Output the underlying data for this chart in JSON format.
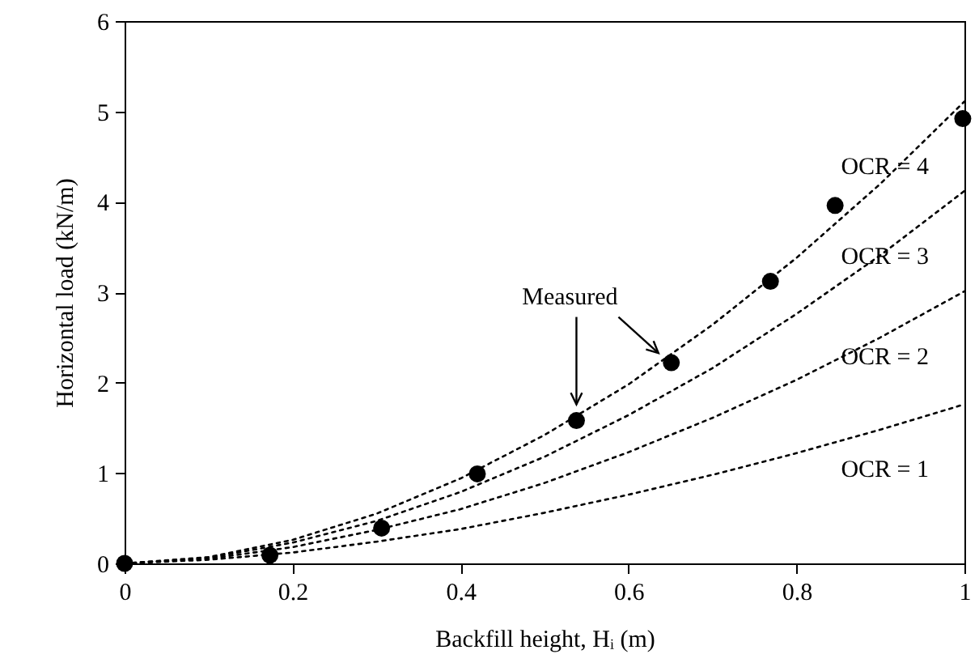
{
  "chart_data": {
    "type": "line",
    "xlabel": "Backfill height, Hᵢ (m)",
    "ylabel": "Horizontal load (kN/m)",
    "xlim": [
      0,
      1
    ],
    "ylim": [
      0,
      6
    ],
    "xticks": [
      0,
      0.2,
      0.4,
      0.6,
      0.8,
      1
    ],
    "yticks": [
      0,
      1,
      2,
      3,
      4,
      5,
      6
    ],
    "grid": false,
    "series": [
      {
        "name": "Measured",
        "type": "scatter",
        "marker": "circle",
        "color": "#000000",
        "x": [
          0,
          0.173,
          0.306,
          0.42,
          0.538,
          0.651,
          0.769,
          0.846,
          0.998
        ],
        "values": [
          0,
          0.09,
          0.39,
          0.99,
          1.58,
          2.22,
          3.12,
          3.96,
          4.92
        ]
      },
      {
        "name": "OCR = 4",
        "line_style": "dotted",
        "color": "#000000",
        "x": [
          0,
          0.1,
          0.2,
          0.3,
          0.4,
          0.5,
          0.6,
          0.7,
          0.8,
          0.9,
          1
        ],
        "values": [
          0,
          0.07,
          0.26,
          0.55,
          0.94,
          1.42,
          1.98,
          2.64,
          3.38,
          4.2,
          5.11
        ]
      },
      {
        "name": "OCR = 3",
        "line_style": "dotted",
        "color": "#000000",
        "x": [
          0,
          0.1,
          0.2,
          0.3,
          0.4,
          0.5,
          0.6,
          0.7,
          0.8,
          0.9,
          1
        ],
        "values": [
          0,
          0.06,
          0.23,
          0.47,
          0.79,
          1.18,
          1.64,
          2.16,
          2.76,
          3.41,
          4.12
        ]
      },
      {
        "name": "OCR = 2",
        "line_style": "dotted",
        "color": "#000000",
        "x": [
          0,
          0.1,
          0.2,
          0.3,
          0.4,
          0.5,
          0.6,
          0.7,
          0.8,
          0.9,
          1
        ],
        "values": [
          0,
          0.05,
          0.18,
          0.37,
          0.6,
          0.89,
          1.23,
          1.61,
          2.03,
          2.5,
          3.01
        ]
      },
      {
        "name": "OCR = 1",
        "line_style": "dotted",
        "color": "#000000",
        "x": [
          0,
          0.1,
          0.2,
          0.3,
          0.4,
          0.5,
          0.6,
          0.7,
          0.8,
          0.9,
          1
        ],
        "values": [
          0,
          0.04,
          0.12,
          0.24,
          0.38,
          0.56,
          0.76,
          0.98,
          1.22,
          1.48,
          1.76
        ]
      }
    ]
  }
}
